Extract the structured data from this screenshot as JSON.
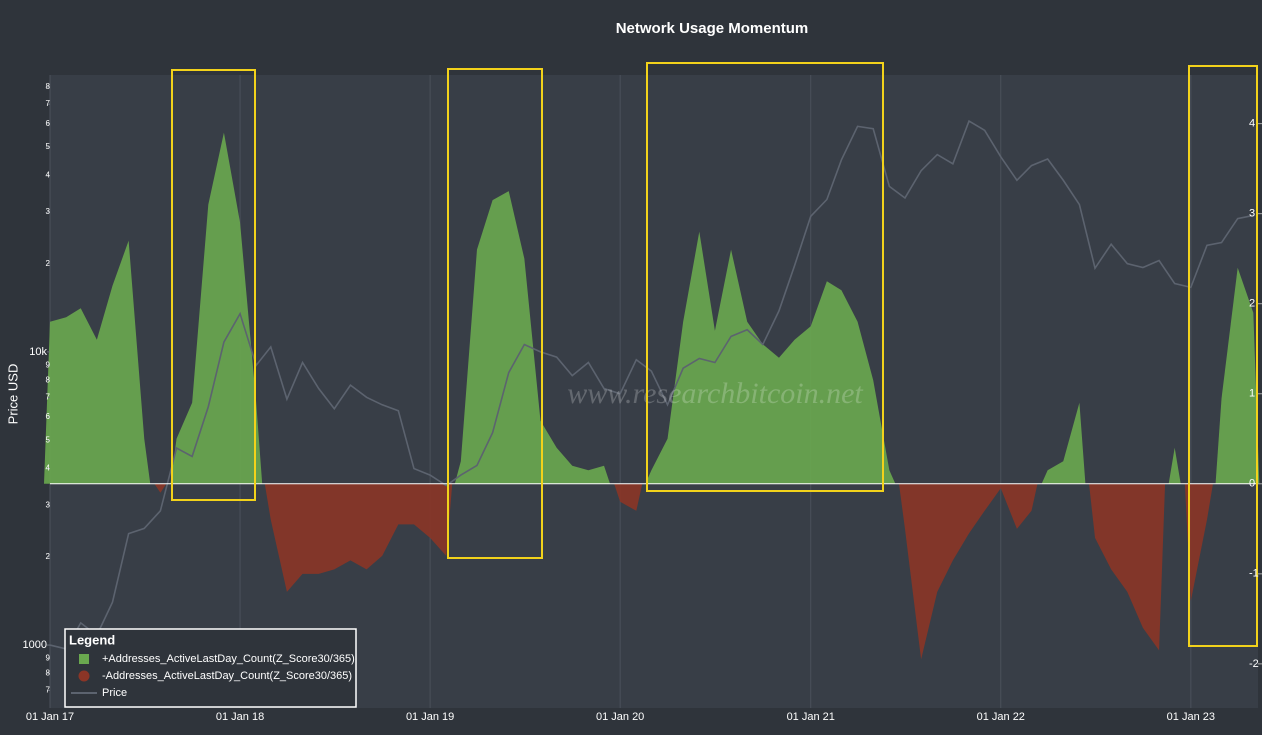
{
  "chart_data": {
    "type": "area",
    "title": "Network Usage Momentum",
    "ylabel": "Price USD",
    "annotation": "www.researchbitcoin.net",
    "legend_title": "Legend",
    "legend": "bottom-left",
    "grid": true,
    "yscale": "log",
    "x": [
      "2017-01-01",
      "2017-02-01",
      "2017-03-01",
      "2017-04-01",
      "2017-05-01",
      "2017-06-01",
      "2017-07-01",
      "2017-08-01",
      "2017-09-01",
      "2017-10-01",
      "2017-11-01",
      "2017-12-01",
      "2018-01-01",
      "2018-02-01",
      "2018-03-01",
      "2018-04-01",
      "2018-05-01",
      "2018-06-01",
      "2018-07-01",
      "2018-08-01",
      "2018-09-01",
      "2018-10-01",
      "2018-11-01",
      "2018-12-01",
      "2019-01-01",
      "2019-02-01",
      "2019-03-01",
      "2019-04-01",
      "2019-05-01",
      "2019-06-01",
      "2019-07-01",
      "2019-08-01",
      "2019-09-01",
      "2019-10-01",
      "2019-11-01",
      "2019-12-01",
      "2020-01-01",
      "2020-02-01",
      "2020-03-01",
      "2020-04-01",
      "2020-05-01",
      "2020-06-01",
      "2020-07-01",
      "2020-08-01",
      "2020-09-01",
      "2020-10-01",
      "2020-11-01",
      "2020-12-01",
      "2021-01-01",
      "2021-02-01",
      "2021-03-01",
      "2021-04-01",
      "2021-05-01",
      "2021-06-01",
      "2021-07-01",
      "2021-08-01",
      "2021-09-01",
      "2021-10-01",
      "2021-11-01",
      "2021-12-01",
      "2022-01-01",
      "2022-02-01",
      "2022-03-01",
      "2022-04-01",
      "2022-05-01",
      "2022-06-01",
      "2022-07-01",
      "2022-08-01",
      "2022-09-01",
      "2022-10-01",
      "2022-11-01",
      "2022-12-01",
      "2023-01-01",
      "2023-02-01",
      "2023-03-01",
      "2023-04-01",
      "2023-05-01"
    ],
    "xlim": [
      "2017-01-01",
      "2023-05-10"
    ],
    "xticks": [
      {
        "value": "2017-01-01",
        "label": "01 Jan 17"
      },
      {
        "value": "2018-01-01",
        "label": "01 Jan 18"
      },
      {
        "value": "2019-01-01",
        "label": "01 Jan 19"
      },
      {
        "value": "2020-01-01",
        "label": "01 Jan 20"
      },
      {
        "value": "2021-01-01",
        "label": "01 Jan 21"
      },
      {
        "value": "2022-01-01",
        "label": "01 Jan 22"
      },
      {
        "value": "2023-01-01",
        "label": "01 Jan 23"
      }
    ],
    "ylim": [
      610,
      88000
    ],
    "yticks": [
      {
        "value": 700,
        "label": "7"
      },
      {
        "value": 800,
        "label": "8"
      },
      {
        "value": 900,
        "label": "9"
      },
      1000,
      {
        "value": 2000,
        "label": "2"
      },
      {
        "value": 3000,
        "label": "3"
      },
      {
        "value": 4000,
        "label": "4"
      },
      {
        "value": 5000,
        "label": "5"
      },
      {
        "value": 6000,
        "label": "6"
      },
      {
        "value": 7000,
        "label": "7"
      },
      {
        "value": 8000,
        "label": "8"
      },
      {
        "value": 9000,
        "label": "9"
      },
      {
        "value": 10000,
        "label": "10k"
      },
      {
        "value": 20000,
        "label": "2"
      },
      {
        "value": 30000,
        "label": "3"
      },
      {
        "value": 40000,
        "label": "4"
      },
      {
        "value": 50000,
        "label": "5"
      },
      {
        "value": 60000,
        "label": "6"
      },
      {
        "value": 70000,
        "label": "7"
      },
      {
        "value": 80000,
        "label": "8"
      }
    ],
    "y2lim": [
      -2.49,
      4.54
    ],
    "y2ticks": [
      -2,
      -1,
      0,
      1,
      2,
      3,
      4
    ],
    "series": [
      {
        "name": "+Addresses_ActiveLastDay_Count(Z_Score30/365)",
        "color": "#6aa84f",
        "axis": "y2",
        "values": [
          1.8,
          1.85,
          1.95,
          1.6,
          2.2,
          2.7,
          0.5,
          null,
          0.5,
          0.9,
          3.1,
          3.9,
          2.9,
          0.9,
          null,
          null,
          null,
          null,
          null,
          null,
          null,
          null,
          null,
          null,
          null,
          null,
          0.25,
          2.6,
          3.15,
          3.25,
          2.5,
          0.7,
          0.4,
          0.2,
          0.15,
          0.2,
          null,
          null,
          0.15,
          0.5,
          1.8,
          2.8,
          1.7,
          2.6,
          1.8,
          1.55,
          1.4,
          1.6,
          1.75,
          2.25,
          2.15,
          1.8,
          1.15,
          0.15,
          null,
          null,
          null,
          null,
          null,
          null,
          null,
          null,
          null,
          0.15,
          0.25,
          0.9,
          null,
          null,
          null,
          null,
          null,
          0.4,
          null,
          null,
          0.95,
          2.4,
          1.9
        ]
      },
      {
        "name": "-Addresses_ActiveLastDay_Count(Z_Score30/365)",
        "color": "#8b3526",
        "axis": "y2",
        "values": [
          null,
          null,
          null,
          null,
          null,
          null,
          null,
          -0.1,
          null,
          null,
          null,
          null,
          null,
          null,
          -0.4,
          -1.2,
          -1.0,
          -1.0,
          -0.95,
          -0.85,
          -0.95,
          -0.8,
          -0.45,
          -0.45,
          -0.6,
          -0.8,
          null,
          null,
          null,
          null,
          null,
          null,
          null,
          null,
          null,
          null,
          -0.2,
          -0.3,
          null,
          null,
          null,
          null,
          null,
          null,
          null,
          null,
          null,
          null,
          null,
          null,
          null,
          null,
          null,
          null,
          -0.5,
          -1.95,
          -1.2,
          -0.85,
          -0.55,
          -0.3,
          -0.05,
          -0.5,
          -0.3,
          null,
          null,
          null,
          -0.6,
          -0.95,
          -1.2,
          -1.6,
          -1.85,
          null,
          -1.3,
          -0.4,
          null,
          null,
          null
        ]
      },
      {
        "name": "Price",
        "color": "#5c636f",
        "values": [
          1000,
          970,
          1190,
          1080,
          1400,
          2400,
          2500,
          2870,
          4700,
          4400,
          6500,
          10800,
          13500,
          9000,
          10400,
          6900,
          9200,
          7500,
          6400,
          7700,
          7000,
          6600,
          6300,
          4000,
          3800,
          3500,
          3800,
          4100,
          5300,
          8500,
          10600,
          10000,
          9600,
          8300,
          9200,
          7500,
          7200,
          9400,
          8600,
          6600,
          8800,
          9500,
          9200,
          11300,
          11900,
          10600,
          13800,
          19700,
          29000,
          33100,
          45200,
          58800,
          57700,
          36700,
          33500,
          41500,
          47100,
          43800,
          61300,
          57000,
          46300,
          38500,
          43200,
          45500,
          38500,
          31800,
          19300,
          23300,
          20000,
          19400,
          20500,
          17100,
          16600,
          23100,
          23600,
          28500,
          29200
        ]
      }
    ]
  }
}
